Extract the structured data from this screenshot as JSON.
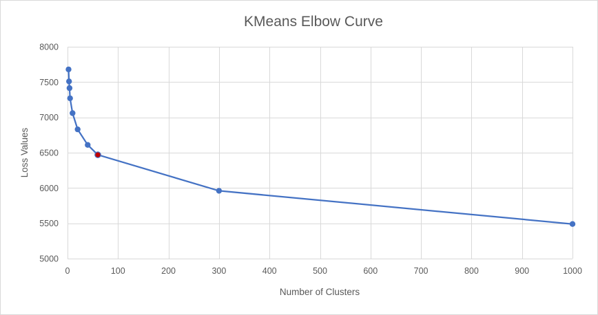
{
  "chart_data": {
    "type": "line",
    "title": "KMeans Elbow Curve",
    "xlabel": "Number  of Clusters",
    "ylabel": "Loss Values",
    "xlim": [
      0,
      1000
    ],
    "ylim": [
      5000,
      8000
    ],
    "x_ticks": [
      0,
      100,
      200,
      300,
      400,
      500,
      600,
      700,
      800,
      900,
      1000
    ],
    "y_ticks": [
      5000,
      5500,
      6000,
      6500,
      7000,
      7500,
      8000
    ],
    "grid": true,
    "legend": "none",
    "series": [
      {
        "color": "#4472c4",
        "x": [
          2,
          3,
          4,
          5,
          10,
          20,
          40,
          300,
          1000
        ],
        "y": [
          7680,
          7510,
          7415,
          7270,
          7060,
          6830,
          6610,
          5960,
          5490
        ]
      }
    ],
    "highlight_point": {
      "x": 60,
      "y": 6470,
      "color": "#c00000"
    }
  }
}
